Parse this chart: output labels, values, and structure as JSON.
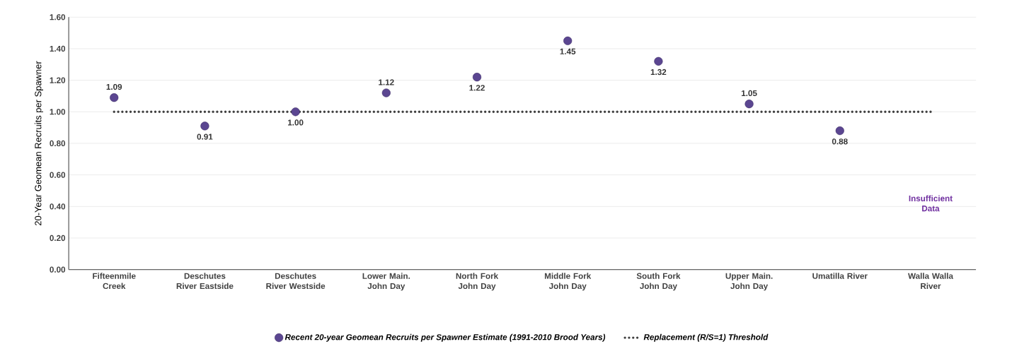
{
  "chart_data": {
    "type": "scatter",
    "ylabel": "20-Year Geomean Recruits per Spawner",
    "categories": [
      "Fifteenmile Creek",
      "Deschutes River Eastside",
      "Deschutes River Westside",
      "Lower Main. John Day",
      "North Fork John Day",
      "Middle Fork John Day",
      "South Fork John Day",
      "Upper Main. John Day",
      "Umatilla River",
      "Walla Walla River"
    ],
    "series": [
      {
        "name": "Recent 20-year Geomean Recruits per Spawner Estimate (1991-2010 Brood Years)",
        "color": "#5b4691",
        "marker": "circle",
        "values": [
          1.09,
          0.91,
          1.0,
          1.12,
          1.22,
          1.45,
          1.32,
          1.05,
          0.88,
          null
        ],
        "value_labels": [
          "1.09",
          "0.91",
          "1.00",
          "1.12",
          "1.22",
          "1.45",
          "1.32",
          "1.05",
          "0.88",
          null
        ]
      },
      {
        "name": "Replacement (R/S=1) Threshold",
        "type": "line",
        "color": "#404040",
        "line_style": "dotted",
        "marker": "none",
        "values": [
          1,
          1,
          1,
          1,
          1,
          1,
          1,
          1,
          1,
          1
        ]
      }
    ],
    "ylim": [
      0,
      1.6
    ],
    "yticks": [
      {
        "value": 0,
        "label": "0.00"
      },
      {
        "value": 0.2,
        "label": "0.20"
      },
      {
        "value": 0.4,
        "label": "0.40"
      },
      {
        "value": 0.6,
        "label": "0.60"
      },
      {
        "value": 0.8,
        "label": "0.80"
      },
      {
        "value": 1.0,
        "label": "1.00"
      },
      {
        "value": 1.2,
        "label": "1.20"
      },
      {
        "value": 1.4,
        "label": "1.40"
      },
      {
        "value": 1.6,
        "label": "1.60"
      }
    ],
    "grid": "y",
    "legend": "bottom",
    "annotations": [
      "Insufficient Data"
    ]
  }
}
